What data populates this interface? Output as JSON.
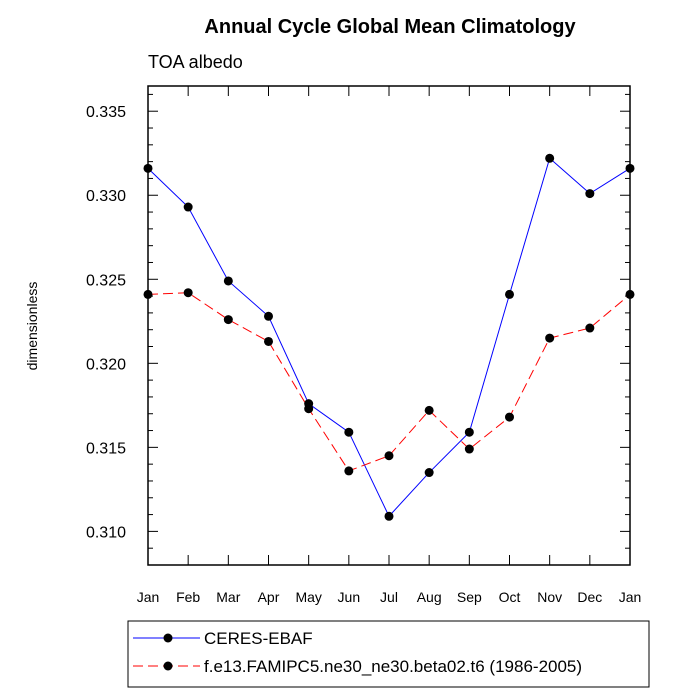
{
  "chart_data": {
    "type": "line",
    "title": "Annual Cycle Global Mean Climatology",
    "subtitle": "TOA albedo",
    "xlabel": "",
    "ylabel": "dimensionless",
    "categories": [
      "Jan",
      "Feb",
      "Mar",
      "Apr",
      "May",
      "Jun",
      "Jul",
      "Aug",
      "Sep",
      "Oct",
      "Nov",
      "Dec",
      "Jan"
    ],
    "ylim": [
      0.308,
      0.3365
    ],
    "yticks": [
      0.31,
      0.315,
      0.32,
      0.325,
      0.33,
      0.335
    ],
    "ytick_labels": [
      "0.310",
      "0.315",
      "0.320",
      "0.325",
      "0.330",
      "0.335"
    ],
    "grid": false,
    "legend_position": "bottom",
    "series": [
      {
        "name": "CERES-EBAF",
        "color": "#0000ff",
        "dash": "solid",
        "values": [
          0.3316,
          0.3293,
          0.3249,
          0.3228,
          0.3176,
          0.3159,
          0.3109,
          0.3135,
          0.3159,
          0.3241,
          0.3322,
          0.3301,
          0.3316
        ]
      },
      {
        "name": "f.e13.FAMIPC5.ne30_ne30.beta02.t6 (1986-2005)",
        "color": "#ff0000",
        "dash": "dashed",
        "values": [
          0.3241,
          0.3242,
          0.3226,
          0.3213,
          0.3173,
          0.3136,
          0.3145,
          0.3172,
          0.3149,
          0.3168,
          0.3215,
          0.3221,
          0.3241
        ]
      }
    ]
  }
}
